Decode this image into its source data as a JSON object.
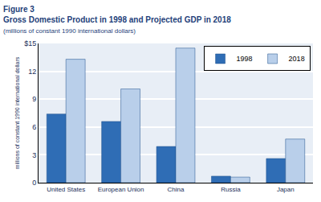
{
  "chart_data": {
    "type": "bar",
    "title": "Figure 3",
    "subtitle": "Gross Domestic Product in 1998 and Projected GDP in 2018",
    "note": "(millions of constant 1990 international dollars)",
    "y_label": "millions of constant 1990 international dollars",
    "categories": [
      "United States",
      "European Union",
      "China",
      "Russia",
      "Japan"
    ],
    "series": [
      {
        "name": "1998",
        "color": "#2f6db5",
        "values": [
          7.4,
          6.6,
          3.9,
          0.7,
          2.6
        ]
      },
      {
        "name": "2018",
        "color": "#b9cfea",
        "values": [
          13.3,
          10.1,
          14.5,
          0.6,
          4.7
        ]
      }
    ],
    "ylim": [
      0,
      15
    ],
    "yticks": [
      0,
      3,
      6,
      9,
      12,
      {
        "value": 15,
        "label": "$15"
      }
    ],
    "grid": true,
    "legend": "top right"
  }
}
